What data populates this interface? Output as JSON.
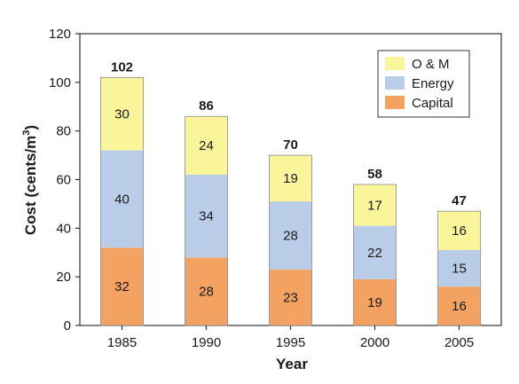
{
  "chart_data": {
    "type": "bar",
    "stacked": true,
    "title": "",
    "xlabel": "Year",
    "ylabel": "Cost (cents/m³)",
    "ylabel_main": "Cost (cents/m",
    "ylabel_sup": "3",
    "ylabel_tail": ")",
    "ylim": [
      0,
      120
    ],
    "yticks": [
      0,
      20,
      40,
      60,
      80,
      100,
      120
    ],
    "grid": false,
    "legend_position": "top-right",
    "categories": [
      "1985",
      "1990",
      "1995",
      "2000",
      "2005"
    ],
    "series": [
      {
        "name": "Capital",
        "values": [
          32,
          28,
          23,
          19,
          16
        ],
        "color": "#F4A261"
      },
      {
        "name": "Energy",
        "values": [
          40,
          34,
          28,
          22,
          15
        ],
        "color": "#B9CCE8"
      },
      {
        "name": "O & M",
        "values": [
          30,
          24,
          19,
          17,
          16
        ],
        "color": "#FAF59A"
      }
    ],
    "totals": [
      102,
      86,
      70,
      58,
      47
    ],
    "bar_heights": [
      102,
      86,
      70,
      58,
      47
    ],
    "legend_order": [
      "O & M",
      "Energy",
      "Capital"
    ]
  }
}
